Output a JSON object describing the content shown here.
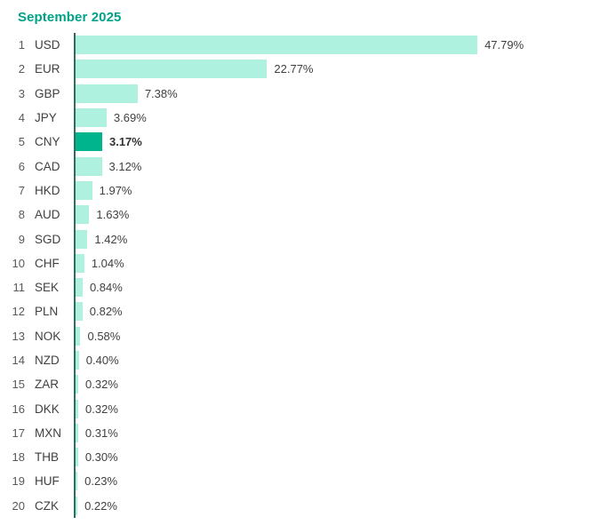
{
  "title": "September 2025",
  "colors": {
    "title": "#00A388",
    "bar": "#AEF1DF",
    "highlight_bar": "#00B48E",
    "axis": "#2E6E62",
    "text": "#404040",
    "rank_text": "#595959"
  },
  "chart_data": {
    "type": "bar",
    "orientation": "horizontal",
    "title": "September 2025",
    "ranks": [
      1,
      2,
      3,
      4,
      5,
      6,
      7,
      8,
      9,
      10,
      11,
      12,
      13,
      14,
      15,
      16,
      17,
      18,
      19,
      20
    ],
    "categories": [
      "USD",
      "EUR",
      "GBP",
      "JPY",
      "CNY",
      "CAD",
      "HKD",
      "AUD",
      "SGD",
      "CHF",
      "SEK",
      "PLN",
      "NOK",
      "NZD",
      "ZAR",
      "DKK",
      "MXN",
      "THB",
      "HUF",
      "CZK"
    ],
    "values": [
      47.79,
      22.77,
      7.38,
      3.69,
      3.17,
      3.12,
      1.97,
      1.63,
      1.42,
      1.04,
      0.84,
      0.82,
      0.58,
      0.4,
      0.32,
      0.32,
      0.31,
      0.3,
      0.23,
      0.22
    ],
    "value_labels": [
      "47.79%",
      "22.77%",
      "7.38%",
      "3.69%",
      "3.17%",
      "3.12%",
      "1.97%",
      "1.63%",
      "1.42%",
      "1.04%",
      "0.84%",
      "0.82%",
      "0.58%",
      "0.40%",
      "0.32%",
      "0.32%",
      "0.31%",
      "0.30%",
      "0.23%",
      "0.22%"
    ],
    "highlight_category": "CNY",
    "xlim": [
      0,
      50
    ],
    "grid": false,
    "legend": false
  }
}
